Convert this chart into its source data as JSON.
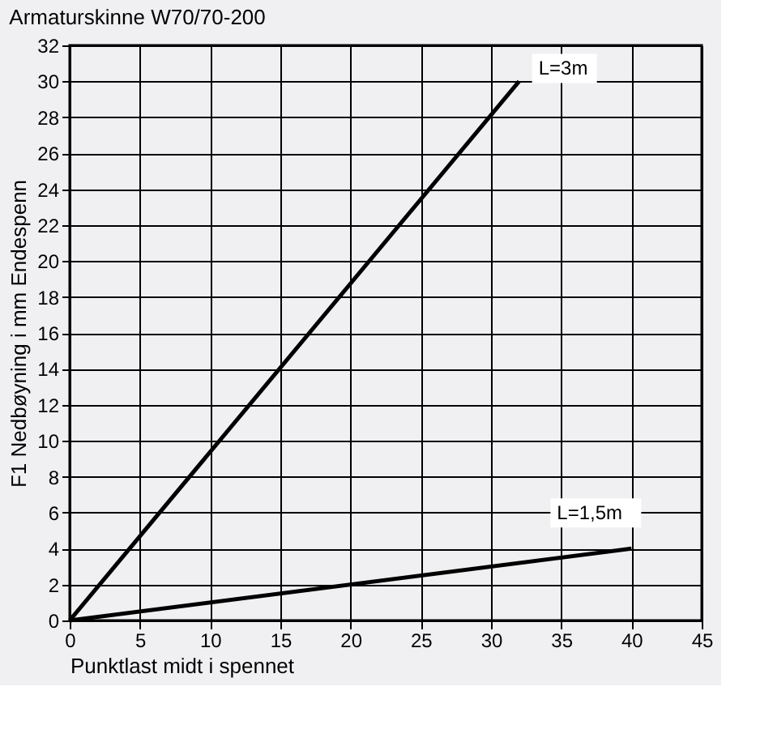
{
  "chart_data": {
    "type": "line",
    "title": "Armaturskinne W70/70-200",
    "xlabel": "Punktlast midt i spennet",
    "ylabel": "F1 Nedbøyning i mm Endespenn",
    "x": [
      0,
      40
    ],
    "series": [
      {
        "name": "L=3m",
        "color": "#000000",
        "x": [
          0,
          32
        ],
        "values": [
          0,
          30
        ]
      },
      {
        "name": "L=1,5m",
        "color": "#000000",
        "values": [
          0,
          4
        ]
      }
    ],
    "xlim": [
      0,
      45
    ],
    "xticks": [
      0,
      5,
      10,
      15,
      20,
      25,
      30,
      35,
      40,
      45
    ],
    "ylim": [
      0,
      32
    ],
    "yticks": [
      0,
      2,
      4,
      6,
      8,
      10,
      12,
      14,
      16,
      18,
      20,
      22,
      24,
      26,
      28,
      30,
      32
    ],
    "grid": true,
    "legend": false,
    "marker": "none",
    "line_style": "solid"
  }
}
